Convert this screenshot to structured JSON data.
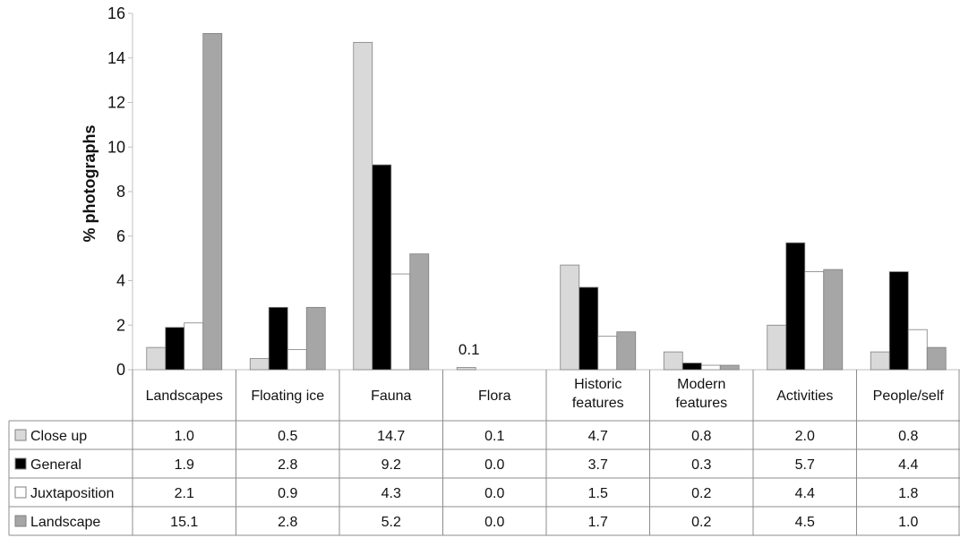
{
  "chart_data": {
    "type": "bar",
    "ylabel": "% photographs",
    "ylim": [
      0,
      16
    ],
    "yticks": [
      0,
      2,
      4,
      6,
      8,
      10,
      12,
      14,
      16
    ],
    "gridlines": false,
    "legend_placement": "data table rows",
    "categories": [
      "Landscapes",
      "Floating ice",
      "Fauna",
      "Flora",
      "Historic features",
      "Modern features",
      "Activities",
      "People/self"
    ],
    "series": [
      {
        "name": "Close up",
        "color": "#d9d9d9",
        "values": [
          1.0,
          0.5,
          14.7,
          0.1,
          4.7,
          0.8,
          2.0,
          0.8
        ]
      },
      {
        "name": "General",
        "color": "#000000",
        "values": [
          1.9,
          2.8,
          9.2,
          0.0,
          3.7,
          0.3,
          5.7,
          4.4
        ]
      },
      {
        "name": "Juxtaposition",
        "color": "#ffffff",
        "values": [
          2.1,
          0.9,
          4.3,
          0.0,
          1.5,
          0.2,
          4.4,
          1.8
        ]
      },
      {
        "name": "Landscape",
        "color": "#a6a6a6",
        "values": [
          15.1,
          2.8,
          5.2,
          0.0,
          1.7,
          0.2,
          4.5,
          1.0
        ]
      }
    ],
    "table": {
      "rows": [
        [
          "1.0",
          "0.5",
          "14.7",
          "0.1",
          "4.7",
          "0.8",
          "2.0",
          "0.8"
        ],
        [
          "1.9",
          "2.8",
          "9.2",
          "0.0",
          "3.7",
          "0.3",
          "5.7",
          "4.4"
        ],
        [
          "2.1",
          "0.9",
          "4.3",
          "0.0",
          "1.5",
          "0.2",
          "4.4",
          "1.8"
        ],
        [
          "15.1",
          "2.8",
          "5.2",
          "0.0",
          "1.7",
          "0.2",
          "4.5",
          "1.0"
        ]
      ]
    },
    "annotations": [
      {
        "text": "0.1",
        "category": "Flora"
      }
    ]
  }
}
